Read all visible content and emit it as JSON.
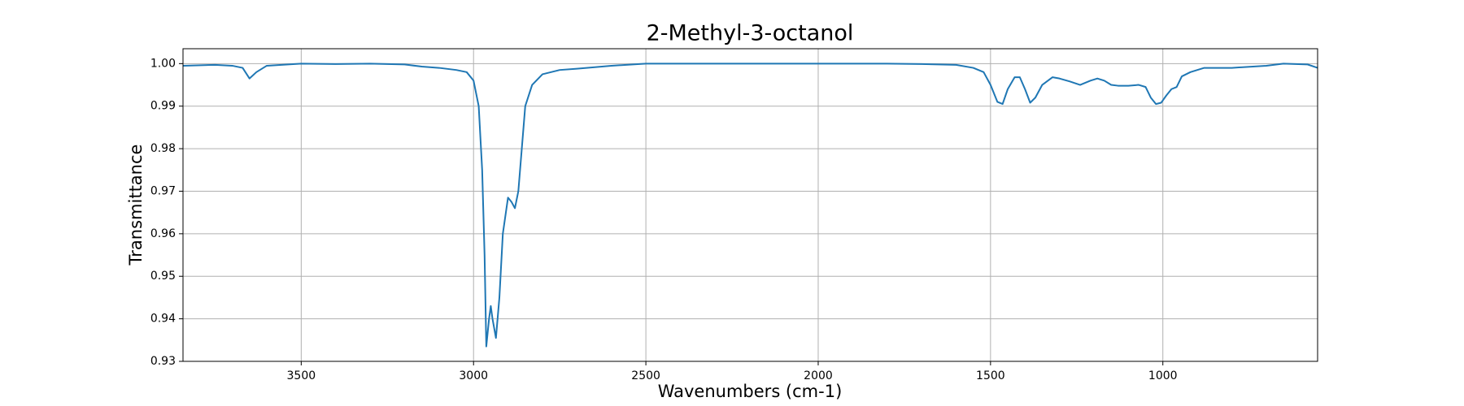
{
  "chart_data": {
    "type": "line",
    "title": "2-Methyl-3-octanol",
    "x_label": "Wavenumbers (cm-1)",
    "y_label": "Transmittance",
    "color": "#1f77b4",
    "grid": true,
    "xlim": [
      3843,
      551
    ],
    "ylim": [
      0.93,
      1.0035
    ],
    "xticks": [
      3500,
      3000,
      2500,
      2000,
      1500,
      1000
    ],
    "yticks": [
      0.93,
      0.94,
      0.95,
      0.96,
      0.97,
      0.98,
      0.99,
      {
        "value": 1,
        "label": "1.00"
      }
    ],
    "x": [
      3843,
      3750,
      3700,
      3670,
      3650,
      3630,
      3600,
      3500,
      3400,
      3300,
      3200,
      3150,
      3100,
      3050,
      3020,
      3000,
      2985,
      2975,
      2968,
      2963,
      2955,
      2950,
      2945,
      2935,
      2925,
      2915,
      2900,
      2890,
      2880,
      2870,
      2860,
      2850,
      2830,
      2800,
      2750,
      2700,
      2600,
      2500,
      2400,
      2300,
      2200,
      2100,
      2000,
      1900,
      1800,
      1700,
      1600,
      1550,
      1520,
      1500,
      1480,
      1465,
      1450,
      1430,
      1415,
      1400,
      1385,
      1370,
      1350,
      1320,
      1300,
      1270,
      1240,
      1210,
      1190,
      1170,
      1150,
      1130,
      1100,
      1070,
      1050,
      1035,
      1020,
      1005,
      990,
      975,
      960,
      945,
      920,
      880,
      800,
      700,
      650,
      580,
      551
    ],
    "values": [
      0.9995,
      0.9997,
      0.9995,
      0.999,
      0.9965,
      0.998,
      0.9995,
      1.0,
      0.9999,
      1.0,
      0.9998,
      0.9993,
      0.999,
      0.9985,
      0.998,
      0.996,
      0.99,
      0.975,
      0.955,
      0.9335,
      0.94,
      0.943,
      0.94,
      0.9355,
      0.945,
      0.96,
      0.9685,
      0.9675,
      0.966,
      0.97,
      0.98,
      0.99,
      0.995,
      0.9975,
      0.9985,
      0.9988,
      0.9995,
      1.0,
      1.0,
      1.0,
      1.0,
      1.0,
      1.0,
      1.0,
      1.0,
      0.9999,
      0.9997,
      0.999,
      0.998,
      0.995,
      0.991,
      0.9905,
      0.994,
      0.9968,
      0.9968,
      0.994,
      0.9908,
      0.992,
      0.995,
      0.9968,
      0.9965,
      0.9958,
      0.995,
      0.996,
      0.9965,
      0.996,
      0.995,
      0.9948,
      0.9948,
      0.995,
      0.9945,
      0.992,
      0.9905,
      0.9908,
      0.9925,
      0.994,
      0.9945,
      0.997,
      0.998,
      0.999,
      0.999,
      0.9995,
      1.0,
      0.9998,
      0.999
    ]
  }
}
